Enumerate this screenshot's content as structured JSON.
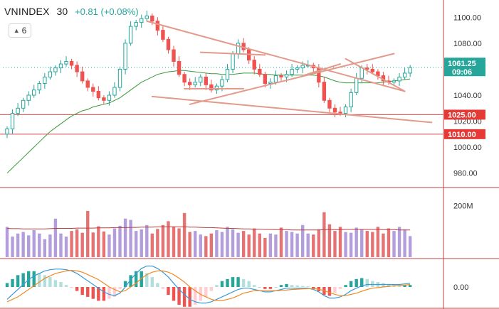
{
  "header": {
    "symbol": "VNINDEX",
    "interval": "30",
    "change": "+0.81 (+0.08%)",
    "indicator_count": "6",
    "collapse_icon": "chevron-up-icon"
  },
  "colors": {
    "up": "#26a69a",
    "down": "#ef5350",
    "bull_body": "#ffffff",
    "ma_line": "#3a9a3a",
    "trendline": "#e39a8a",
    "level_line": "#d64a4a",
    "volume_up": "#b39ddb",
    "volume_down": "#e57373",
    "volume_ma": "#b84040",
    "macd_line": "#3a9ad9",
    "signal_line": "#f08a24",
    "hist_up_strong": "#26a69a",
    "hist_up_weak": "#b2dfdb",
    "hist_down_strong": "#ef5350",
    "hist_down_weak": "#ffcdd2",
    "axis_text": "#333333",
    "current_label_bg": "#26a69a",
    "level_label_bg": "#e53935"
  },
  "price_axis": {
    "ticks": [
      "1100.00",
      "1080.00",
      "1060.00",
      "1040.00",
      "1020.00",
      "1000.00",
      "980.00"
    ],
    "tick_values": [
      1100,
      1080,
      1060,
      1040,
      1020,
      1000,
      980
    ],
    "range": [
      970,
      1110
    ]
  },
  "volume_axis": {
    "ticks": [
      "200M"
    ],
    "tick_values": [
      200
    ],
    "range": [
      0,
      260
    ]
  },
  "macd_axis": {
    "ticks": [
      "0.00"
    ],
    "tick_values": [
      0
    ]
  },
  "labels": {
    "current": {
      "price": "1061.25",
      "time": "09:06",
      "value": 1061.25
    },
    "levels": [
      {
        "text": "1025.00",
        "value": 1025
      },
      {
        "text": "1010.00",
        "value": 1010
      }
    ]
  },
  "chart_data": {
    "type": "candlestick",
    "price_range": [
      970,
      1110
    ],
    "close": [
      1014,
      1026,
      1030,
      1036,
      1040,
      1044,
      1049,
      1054,
      1058,
      1061,
      1064,
      1066,
      1063,
      1058,
      1051,
      1046,
      1043,
      1038,
      1036,
      1040,
      1046,
      1060,
      1080,
      1093,
      1096,
      1099,
      1101,
      1097,
      1090,
      1083,
      1075,
      1066,
      1056,
      1050,
      1048,
      1050,
      1054,
      1048,
      1044,
      1047,
      1052,
      1060,
      1072,
      1080,
      1075,
      1067,
      1060,
      1056,
      1049,
      1050,
      1055,
      1054,
      1056,
      1060,
      1061,
      1063,
      1063,
      1061,
      1050,
      1036,
      1030,
      1027,
      1026,
      1031,
      1042,
      1053,
      1061,
      1060,
      1058,
      1055,
      1051,
      1050,
      1051,
      1054,
      1057,
      1061.25
    ],
    "sma": [
      980,
      984,
      988,
      992,
      996,
      1000,
      1004,
      1008,
      1012,
      1015,
      1018,
      1021,
      1024,
      1026,
      1028,
      1029,
      1031,
      1032,
      1033,
      1034,
      1036,
      1038,
      1041,
      1044,
      1047,
      1050,
      1052,
      1054,
      1056,
      1057,
      1058,
      1058.5,
      1059,
      1059,
      1058.5,
      1058,
      1057.5,
      1057,
      1056.5,
      1056.5,
      1056,
      1056,
      1056,
      1056.5,
      1057,
      1057,
      1057,
      1056.5,
      1056,
      1056,
      1055.5,
      1055.5,
      1055.5,
      1055.5,
      1055.5,
      1055.5,
      1055.5,
      1055.5,
      1055,
      1054,
      1052.5,
      1051,
      1050,
      1049.5,
      1049.5,
      1049.5,
      1049.5,
      1049.5,
      1049.5,
      1049.5,
      1050,
      1050.5,
      1051,
      1051.5,
      1052,
      1052.5
    ],
    "volume": [
      118,
      80,
      92,
      98,
      85,
      105,
      92,
      70,
      88,
      150,
      92,
      80,
      102,
      108,
      95,
      180,
      96,
      120,
      100,
      88,
      112,
      122,
      150,
      145,
      102,
      108,
      125,
      92,
      110,
      125,
      140,
      118,
      112,
      172,
      98,
      102,
      88,
      82,
      92,
      105,
      98,
      118,
      108,
      95,
      102,
      88,
      112,
      92,
      75,
      92,
      88,
      115,
      102,
      98,
      92,
      125,
      92,
      88,
      108,
      175,
      128,
      102,
      118,
      98,
      95,
      115,
      108,
      102,
      98,
      118,
      92,
      112,
      102,
      118,
      108,
      82
    ],
    "volume_ma": [
      112,
      111,
      111,
      110,
      110,
      110,
      110,
      110,
      111,
      112,
      112,
      112,
      112,
      113,
      113,
      113,
      113,
      114,
      114,
      114,
      115,
      115,
      115,
      116,
      116,
      117,
      117,
      117,
      118,
      118,
      118,
      118,
      118,
      118,
      117,
      117,
      116,
      115,
      115,
      114,
      113,
      112,
      112,
      111,
      110,
      110,
      109,
      109,
      108,
      108,
      107,
      107,
      107,
      106,
      106,
      106,
      106,
      106,
      106,
      107,
      107,
      107,
      107,
      108,
      108,
      108,
      108,
      108,
      108,
      108,
      107,
      107,
      107,
      106,
      106,
      106
    ],
    "macd": [
      -10,
      -6,
      -2,
      2,
      6,
      9,
      11,
      13,
      14,
      14.5,
      14.5,
      14,
      13,
      11,
      8,
      5,
      2,
      -1,
      -4,
      -6,
      -7,
      -5,
      0,
      6,
      11,
      15,
      17,
      17,
      15,
      12,
      8,
      3,
      -2,
      -6,
      -10,
      -12,
      -13,
      -13,
      -12,
      -10,
      -8,
      -6,
      -4,
      -2,
      -1,
      -1,
      -2,
      -3,
      -4,
      -4,
      -3,
      -2,
      -1,
      -1,
      -1,
      -1,
      -1,
      -2,
      -4,
      -7,
      -9,
      -9,
      -8,
      -6,
      -3,
      -1,
      1,
      2,
      2,
      2,
      2,
      2,
      2,
      2,
      2.5,
      3
    ],
    "signal": [
      -12,
      -10,
      -8,
      -5,
      -2,
      1,
      4,
      7,
      9,
      11,
      12,
      13,
      13.5,
      13,
      12,
      10,
      8,
      6,
      3,
      0,
      -2,
      -4,
      -3,
      0,
      3,
      7,
      10,
      12,
      13,
      13,
      12,
      10,
      7,
      4,
      0,
      -3,
      -6,
      -8,
      -10,
      -11,
      -11,
      -10,
      -9,
      -7,
      -5,
      -4,
      -3,
      -3,
      -3,
      -3,
      -3,
      -3,
      -2.5,
      -2,
      -1.8,
      -1.5,
      -1.3,
      -1.3,
      -1.8,
      -3,
      -4.5,
      -6,
      -7,
      -7,
      -6,
      -5,
      -3.5,
      -2,
      -1,
      -0.5,
      0,
      0.5,
      1,
      1.2,
      1.5,
      2
    ],
    "trendlines": [
      {
        "from": [
          35,
          1074
        ],
        "to": [
          41,
          1072
        ]
      },
      {
        "from": [
          48,
          1097
        ],
        "to": [
          153,
          1072
        ]
      },
      {
        "from": [
          46,
          1072
        ],
        "to": [
          60,
          1069
        ]
      },
      {
        "from": [
          51,
          1067
        ],
        "to": [
          152,
          1045
        ]
      },
      {
        "from": [
          54,
          1070
        ],
        "to": [
          63,
          1062
        ]
      },
      {
        "from": [
          40,
          1048
        ],
        "to": [
          59,
          1068
        ]
      },
      {
        "from": [
          70,
          1062
        ],
        "to": [
          151,
          1039
        ]
      },
      {
        "from": [
          61,
          1067
        ],
        "to": [
          65,
          1066
        ]
      }
    ]
  }
}
